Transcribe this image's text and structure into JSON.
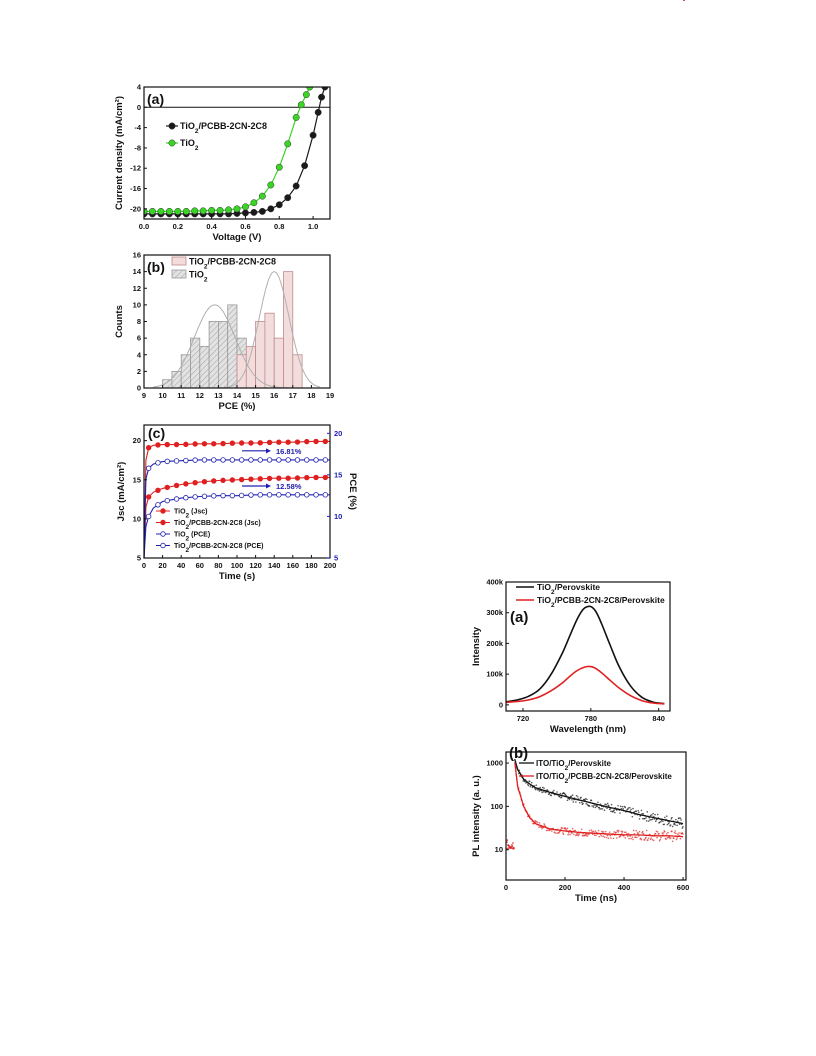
{
  "chart_data": [
    {
      "type": "line",
      "panel_label": "(a)",
      "xlabel": "Voltage (V)",
      "ylabel": "Current density (mA/cm²)",
      "xlim": [
        0.0,
        1.1
      ],
      "ylim": [
        -22,
        4
      ],
      "x_ticks": [
        "0.0",
        "0.2",
        "0.4",
        "0.6",
        "0.8",
        "1.0"
      ],
      "y_ticks": [
        "4",
        "0",
        "-4",
        "-8",
        "-12",
        "-16",
        "-20"
      ],
      "legend": [
        "TiO2/PCBB-2CN-2C8",
        "TiO2"
      ],
      "legend_position": "upper-left",
      "series": [
        {
          "name": "TiO2/PCBB-2CN-2C8",
          "color": "#1a1a1a",
          "x": [
            0.0,
            0.05,
            0.1,
            0.15,
            0.2,
            0.25,
            0.3,
            0.35,
            0.4,
            0.45,
            0.5,
            0.55,
            0.6,
            0.65,
            0.7,
            0.75,
            0.8,
            0.85,
            0.9,
            0.95,
            1.0,
            1.03,
            1.05,
            1.07
          ],
          "y": [
            -21.0,
            -21.0,
            -21.0,
            -21.0,
            -21.0,
            -21.0,
            -21.0,
            -21.0,
            -21.0,
            -21.0,
            -21.0,
            -20.9,
            -20.8,
            -20.7,
            -20.5,
            -20.0,
            -19.2,
            -17.8,
            -15.5,
            -11.5,
            -5.5,
            -1.0,
            2.0,
            4.0
          ]
        },
        {
          "name": "TiO2",
          "color": "#39d424",
          "x": [
            0.0,
            0.05,
            0.1,
            0.15,
            0.2,
            0.25,
            0.3,
            0.35,
            0.4,
            0.45,
            0.5,
            0.55,
            0.6,
            0.65,
            0.7,
            0.75,
            0.8,
            0.85,
            0.9,
            0.93,
            0.96,
            0.98
          ],
          "y": [
            -20.5,
            -20.5,
            -20.5,
            -20.5,
            -20.5,
            -20.5,
            -20.4,
            -20.4,
            -20.3,
            -20.3,
            -20.2,
            -20.0,
            -19.6,
            -18.8,
            -17.5,
            -15.3,
            -11.8,
            -7.2,
            -2.0,
            0.5,
            2.5,
            4.0
          ]
        }
      ]
    },
    {
      "type": "bar",
      "panel_label": "(b)",
      "xlabel": "PCE (%)",
      "ylabel": "Counts",
      "xlim": [
        9,
        19
      ],
      "ylim": [
        0,
        16
      ],
      "x_ticks": [
        "9",
        "10",
        "11",
        "12",
        "13",
        "14",
        "15",
        "16",
        "17",
        "18",
        "19"
      ],
      "y_ticks": [
        "0",
        "2",
        "4",
        "6",
        "8",
        "10",
        "12",
        "14",
        "16"
      ],
      "legend": [
        "TiO2/PCBB-2CN-2C8",
        "TiO2"
      ],
      "legend_position": "top-left",
      "series": [
        {
          "name": "TiO2",
          "color": "#999999",
          "fill": "#e2e2e2",
          "bin_start": [
            10.0,
            10.5,
            11.0,
            11.5,
            12.0,
            12.5,
            13.0,
            13.5,
            14.0
          ],
          "values": [
            1,
            2,
            4,
            6,
            5,
            8,
            8,
            10,
            6
          ]
        },
        {
          "name": "TiO2/PCBB-2CN-2C8",
          "color": "#c08a8a",
          "fill": "#f3dcdc",
          "bin_start": [
            14.0,
            14.5,
            15.0,
            15.5,
            16.0,
            16.5,
            17.0
          ],
          "values": [
            4,
            5,
            8,
            9,
            6,
            14,
            4
          ]
        }
      ],
      "fits": [
        {
          "series": "TiO2",
          "mean": 12.8,
          "sigma": 1.1,
          "peak": 10
        },
        {
          "series": "TiO2/PCBB-2CN-2C8",
          "mean": 16.0,
          "sigma": 0.8,
          "peak": 14
        }
      ]
    },
    {
      "type": "line",
      "panel_label": "(c)",
      "xlabel": "Time (s)",
      "ylabel": "Jsc (mA/cm²)",
      "y2label": "PCE (%)",
      "xlim": [
        0,
        200
      ],
      "ylim": [
        5,
        22
      ],
      "y2lim": [
        5,
        21
      ],
      "x_ticks": [
        "0",
        "20",
        "40",
        "60",
        "80",
        "100",
        "120",
        "140",
        "160",
        "180",
        "200"
      ],
      "y_ticks": [
        "20",
        "15",
        "10",
        "5"
      ],
      "y2_ticks": [
        "20",
        "15",
        "10",
        "5"
      ],
      "annotations": [
        "16.81%",
        "12.58%"
      ],
      "legend": [
        "TiO2 (Jsc)",
        "TiO2/PCBB-2CN-2C8 (Jsc)",
        "TiO2 (PCE)",
        "TiO2/PCBB-2CN-2C8 (PCE)"
      ],
      "legend_position": "bottom-left",
      "series": [
        {
          "name": "TiO2 (Jsc)",
          "color": "#e02020",
          "marker": "filled",
          "x": [
            0,
            2,
            5,
            10,
            20,
            40,
            60,
            80,
            100,
            120,
            140,
            160,
            180,
            200
          ],
          "y": [
            5,
            11.5,
            12.8,
            13.4,
            13.9,
            14.4,
            14.7,
            14.9,
            15.0,
            15.1,
            15.2,
            15.2,
            15.3,
            15.3
          ]
        },
        {
          "name": "TiO2/PCBB-2CN-2C8 (Jsc)",
          "color": "#e02020",
          "marker": "filled",
          "x": [
            0,
            2,
            5,
            10,
            20,
            40,
            60,
            80,
            100,
            120,
            140,
            160,
            180,
            200
          ],
          "y": [
            5,
            17.5,
            19.1,
            19.4,
            19.5,
            19.5,
            19.6,
            19.6,
            19.7,
            19.7,
            19.8,
            19.8,
            19.9,
            19.9
          ]
        },
        {
          "name": "TiO2 (PCE)",
          "color": "#2020b0",
          "marker": "open",
          "x": [
            0,
            2,
            5,
            10,
            20,
            40,
            60,
            80,
            100,
            120,
            140,
            160,
            180,
            200
          ],
          "y": [
            5,
            8.8,
            10.0,
            11.0,
            11.8,
            12.2,
            12.4,
            12.5,
            12.5,
            12.6,
            12.6,
            12.6,
            12.6,
            12.6
          ]
        },
        {
          "name": "TiO2/PCBB-2CN-2C8 (PCE)",
          "color": "#2020b0",
          "marker": "open",
          "x": [
            0,
            2,
            5,
            10,
            20,
            40,
            60,
            80,
            100,
            120,
            140,
            160,
            180,
            200
          ],
          "y": [
            5,
            14.5,
            15.8,
            16.3,
            16.6,
            16.7,
            16.8,
            16.8,
            16.8,
            16.8,
            16.8,
            16.8,
            16.8,
            16.8
          ]
        }
      ]
    },
    {
      "type": "line",
      "panel_label": "(a)",
      "xlabel": "Wavelength (nm)",
      "ylabel": "Intensity",
      "xlim": [
        705,
        850
      ],
      "ylim": [
        -20000,
        400000
      ],
      "x_ticks": [
        "720",
        "780",
        "840"
      ],
      "y_ticks": [
        "400k",
        "300k",
        "200k",
        "100k",
        "0"
      ],
      "legend": [
        "TiO2/Perovskite",
        "TiO2/PCBB-2CN-2C8/Perovskite"
      ],
      "legend_position": "top",
      "series": [
        {
          "name": "TiO2/Perovskite",
          "color": "#111111",
          "x": [
            705,
            715,
            725,
            735,
            745,
            755,
            762,
            768,
            773,
            777,
            781,
            785,
            790,
            797,
            805,
            815,
            825,
            835,
            845
          ],
          "y": [
            10000,
            16000,
            28000,
            52000,
            100000,
            170000,
            230000,
            280000,
            310000,
            320000,
            318000,
            300000,
            260000,
            195000,
            125000,
            62000,
            25000,
            9000,
            4000
          ]
        },
        {
          "name": "TiO2/PCBB-2CN-2C8/Perovskite",
          "color": "#e02020",
          "x": [
            705,
            715,
            725,
            735,
            745,
            755,
            762,
            768,
            773,
            777,
            781,
            785,
            790,
            797,
            805,
            815,
            825,
            835,
            845
          ],
          "y": [
            8000,
            11000,
            16000,
            27000,
            46000,
            72000,
            95000,
            112000,
            121000,
            125000,
            124000,
            117000,
            103000,
            80000,
            55000,
            30000,
            14000,
            6000,
            3000
          ]
        }
      ]
    },
    {
      "type": "scatter",
      "panel_label": "(b)",
      "xlabel": "Time (ns)",
      "ylabel": "PL intensity (a. u.)",
      "xlim": [
        0,
        610
      ],
      "ylim": [
        2,
        1800
      ],
      "yscale": "log",
      "x_ticks": [
        "0",
        "200",
        "400",
        "600"
      ],
      "y_ticks": [
        "1000",
        "100",
        "10"
      ],
      "legend": [
        "ITO/TiO2/Perovskite",
        "ITO/TiO2/PCBB-2CN-2C8/Perovskite"
      ],
      "legend_position": "top-right",
      "series": [
        {
          "name": "ITO/TiO2/Perovskite",
          "color": "#111111",
          "x": [
            30,
            40,
            60,
            80,
            100,
            150,
            200,
            250,
            300,
            350,
            400,
            450,
            500,
            550,
            600
          ],
          "y": [
            1200,
            700,
            420,
            330,
            270,
            210,
            170,
            140,
            115,
            95,
            80,
            65,
            55,
            47,
            40
          ]
        },
        {
          "name": "ITO/TiO2/PCBB-2CN-2C8/Perovskite",
          "color": "#e02020",
          "x": [
            30,
            40,
            60,
            80,
            100,
            150,
            200,
            250,
            300,
            350,
            400,
            450,
            500,
            550,
            600
          ],
          "y": [
            1000,
            280,
            100,
            55,
            40,
            30,
            27,
            25,
            24,
            23,
            22,
            22,
            21,
            21,
            20
          ]
        }
      ],
      "noise_floor": {
        "x_range": [
          0,
          30
        ],
        "y": 13
      }
    }
  ]
}
